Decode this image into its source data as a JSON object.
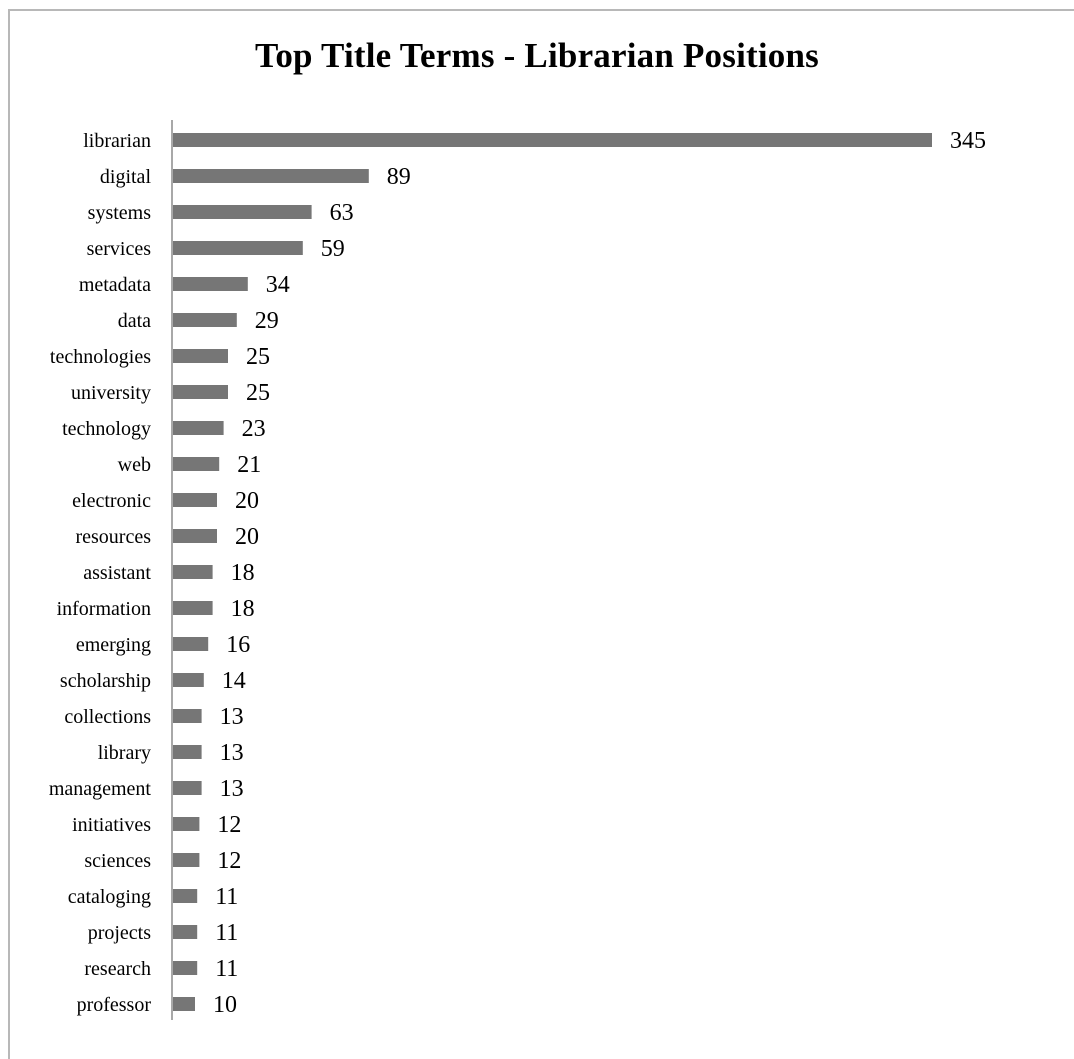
{
  "chart_data": {
    "type": "bar",
    "orientation": "horizontal",
    "title": "Top Title Terms - Librarian Positions",
    "categories": [
      "librarian",
      "digital",
      "systems",
      "services",
      "metadata",
      "data",
      "technologies",
      "university",
      "technology",
      "web",
      "electronic",
      "resources",
      "assistant",
      "information",
      "emerging",
      "scholarship",
      "collections",
      "library",
      "management",
      "initiatives",
      "sciences",
      "cataloging",
      "projects",
      "research",
      "professor"
    ],
    "values": [
      345,
      89,
      63,
      59,
      34,
      29,
      25,
      25,
      23,
      21,
      20,
      20,
      18,
      18,
      16,
      14,
      13,
      13,
      13,
      12,
      12,
      11,
      11,
      11,
      10
    ],
    "data_labels": true,
    "xlim": [
      0,
      345
    ],
    "grid": false,
    "legend": "none",
    "bar_color": "#767676",
    "axis_color": "#8c8c8c"
  }
}
